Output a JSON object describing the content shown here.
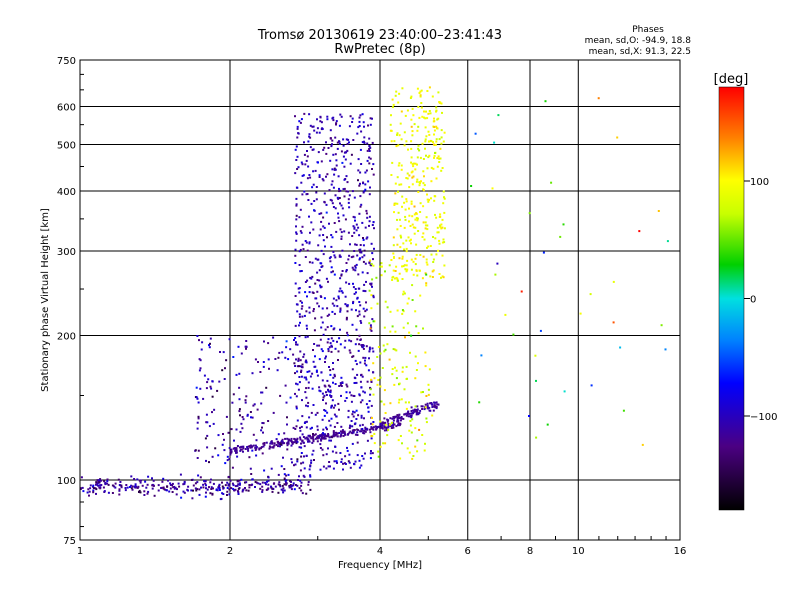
{
  "chart_data": {
    "type": "scatter",
    "title": "Tromsø 20130619 23:40:00–23:41:43",
    "subtitle": "RwPretec (8p)",
    "xlabel": "Frequency [MHz]",
    "ylabel": "Stationary phase Virtual Height [km]",
    "xscale": "log",
    "yscale": "log",
    "xlim": [
      1,
      16
    ],
    "ylim": [
      75,
      750
    ],
    "xticks": [
      1,
      2,
      4,
      6,
      8,
      10,
      16
    ],
    "yticks": [
      75,
      100,
      200,
      300,
      400,
      500,
      600,
      750
    ],
    "xgrid": [
      1,
      2,
      4,
      6,
      8,
      10,
      16
    ],
    "ygrid": [
      100,
      200,
      300,
      400,
      500,
      600
    ],
    "grid": true,
    "phase_stats": {
      "heading": "Phases",
      "line_o": "mean, sd,O: -94.9, 18.8",
      "line_x": "mean, sd,X:  91.3, 22.5"
    },
    "colorbar": {
      "label": "[deg]",
      "range": [
        -180,
        180
      ],
      "ticks": [
        100,
        0,
        -100
      ],
      "tick_labels": [
        "100",
        "0",
        "−100"
      ]
    },
    "series": [
      {
        "name": "low band trace",
        "x_range": [
          1.0,
          2.9
        ],
        "y_center": 97,
        "y_spread": 4,
        "phase": -115,
        "phase_spread": 35,
        "count": 320
      },
      {
        "name": "E-F transition trace",
        "x_range": [
          2.0,
          4.4
        ],
        "y_center_start": 115,
        "y_center_end": 130,
        "y_spread": 2,
        "phase": -118,
        "phase_spread": 10,
        "count": 260
      },
      {
        "name": "F trace lower",
        "x_range": [
          4.0,
          5.3
        ],
        "y_center_start": 130,
        "y_center_end": 145,
        "y_spread": 3,
        "phase": -115,
        "phase_spread": 12,
        "count": 120
      },
      {
        "name": "O cusp column",
        "x_range": [
          2.7,
          3.9
        ],
        "y_range": [
          105,
          580
        ],
        "phase": -105,
        "phase_spread": 30,
        "count": 900
      },
      {
        "name": "X cusp column",
        "x_range": [
          4.2,
          5.4
        ],
        "y_range": [
          260,
          660
        ],
        "phase": 95,
        "phase_spread": 20,
        "count": 340
      },
      {
        "name": "scatter 2-3 MHz",
        "x_range": [
          1.7,
          2.9
        ],
        "y_range": [
          100,
          200
        ],
        "phase": -110,
        "phase_spread": 40,
        "count": 220
      },
      {
        "name": "X trace mid",
        "x_range": [
          3.8,
          5.1
        ],
        "y_range": [
          110,
          290
        ],
        "phase": 85,
        "phase_spread": 40,
        "count": 160
      },
      {
        "name": "sparse high freq",
        "x_range": [
          6.0,
          15.5
        ],
        "y_range": [
          100,
          650
        ],
        "phase": 40,
        "phase_spread": 140,
        "count": 40
      }
    ]
  }
}
